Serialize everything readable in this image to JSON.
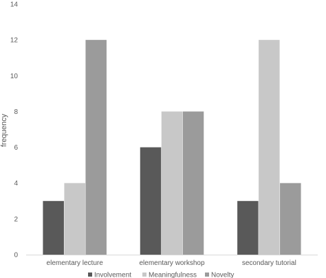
{
  "chart_data": {
    "type": "bar",
    "categories": [
      "elementary lecture",
      "elementary workshop",
      "secondary tutorial"
    ],
    "series": [
      {
        "name": "Involvement",
        "values": [
          3,
          6,
          3
        ],
        "color": "#595959"
      },
      {
        "name": "Meaningfulness",
        "values": [
          4,
          8,
          12
        ],
        "color": "#c8c8c8"
      },
      {
        "name": "Novelty",
        "values": [
          12,
          8,
          4
        ],
        "color": "#9b9b9b"
      }
    ],
    "title": "",
    "xlabel": "",
    "ylabel": "frequency",
    "ylim": [
      0,
      14
    ],
    "yticks": [
      0,
      2,
      4,
      6,
      8,
      10,
      12,
      14
    ],
    "grid": false,
    "legend": "bottom"
  }
}
